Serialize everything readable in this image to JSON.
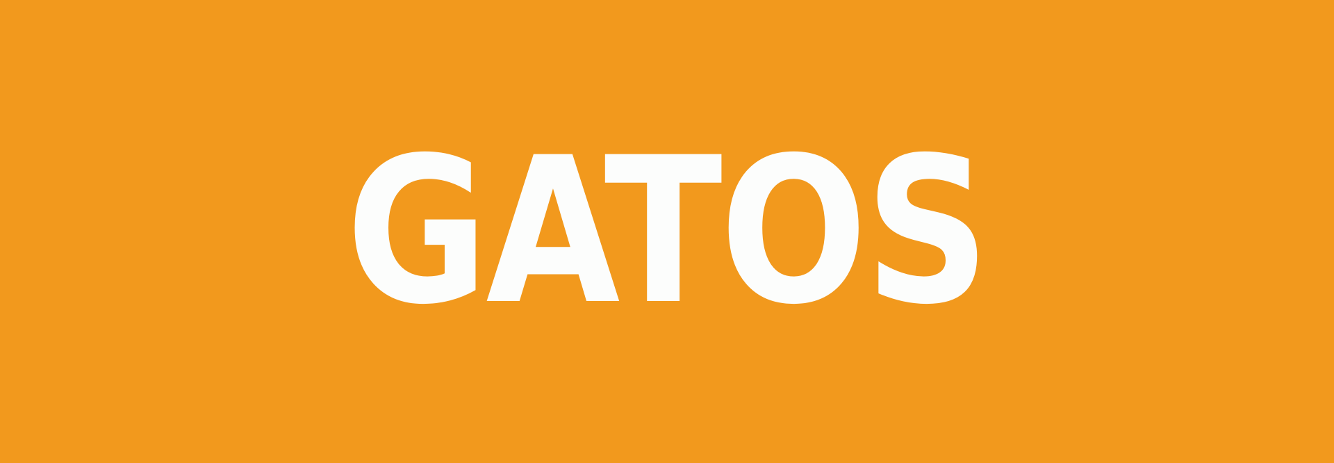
{
  "banner": {
    "title": "GATOS",
    "colors": {
      "background": "#F2991D",
      "text": "#FCFDFC"
    }
  }
}
